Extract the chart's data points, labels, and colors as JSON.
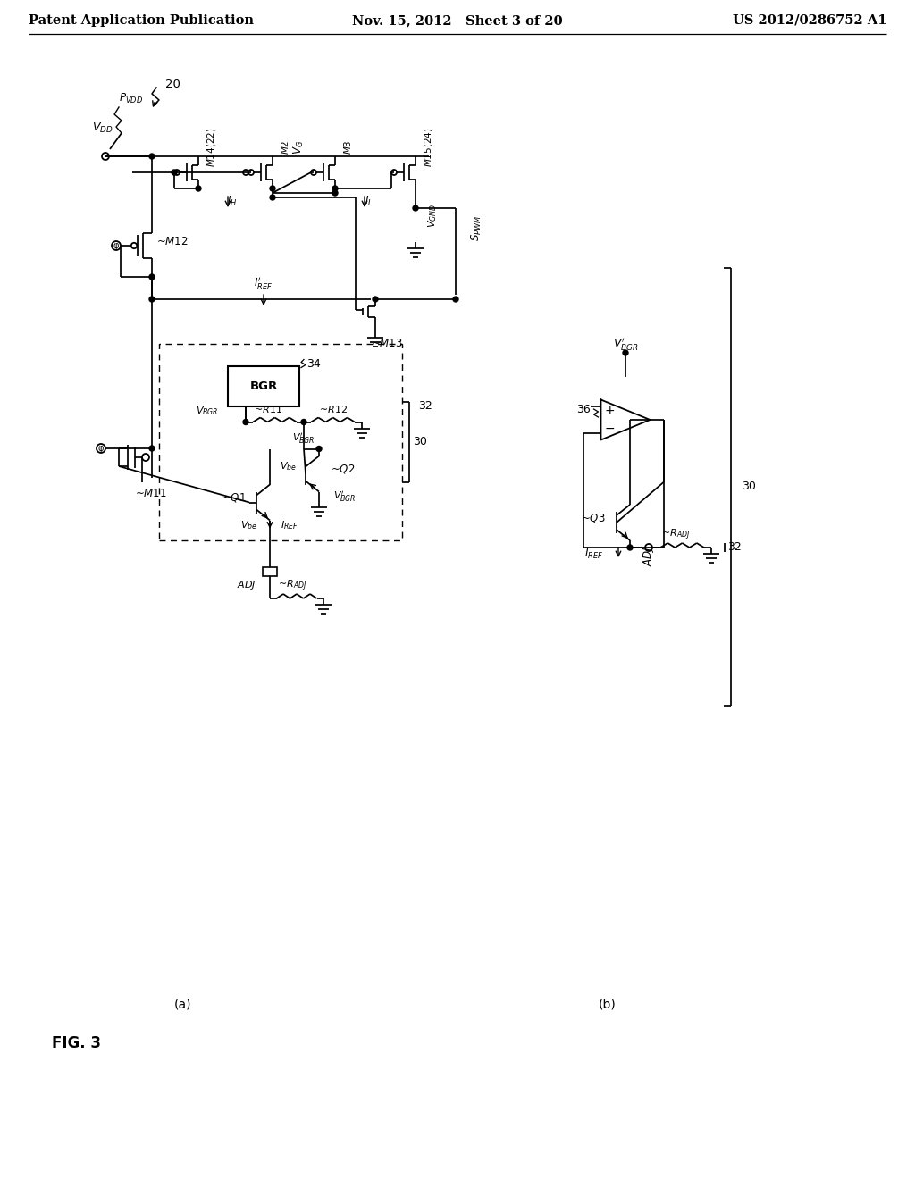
{
  "header_left": "Patent Application Publication",
  "header_mid": "Nov. 15, 2012   Sheet 3 of 20",
  "header_right": "US 2012/0286752 A1",
  "fig_label": "FIG. 3",
  "sub_a": "(a)",
  "sub_b": "(b)",
  "bg": "#ffffff",
  "lc": "#000000"
}
